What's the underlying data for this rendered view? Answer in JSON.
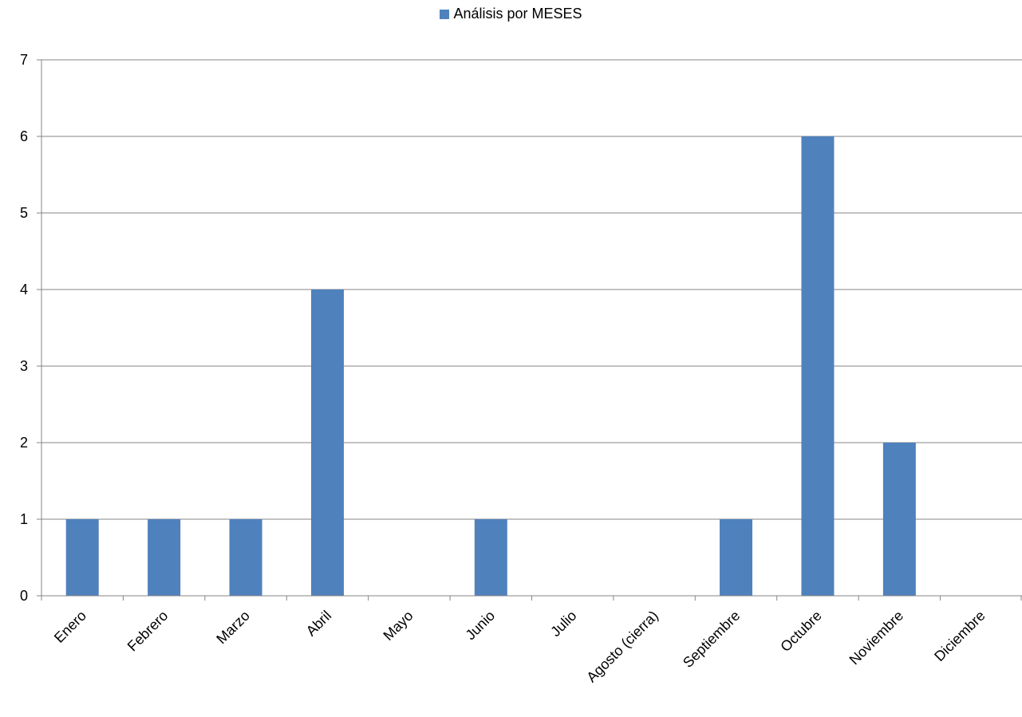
{
  "chart_data": {
    "type": "bar",
    "categories": [
      "Enero",
      "Febrero",
      "Marzo",
      "Abril",
      "Mayo",
      "Junio",
      "Julio",
      "Agosto (cierra)",
      "Septiembre",
      "Octubre",
      "Noviembre",
      "Diciembre"
    ],
    "series": [
      {
        "name": "Análisis por MESES",
        "values": [
          1,
          1,
          1,
          4,
          0,
          1,
          0,
          0,
          1,
          6,
          2,
          0
        ],
        "color": "#4F81BD"
      }
    ],
    "ylim": [
      0,
      7
    ],
    "yticks": [
      0,
      1,
      2,
      3,
      4,
      5,
      6,
      7
    ],
    "grid": true,
    "legend_position": "top-center",
    "title": "",
    "xlabel": "",
    "ylabel": ""
  }
}
